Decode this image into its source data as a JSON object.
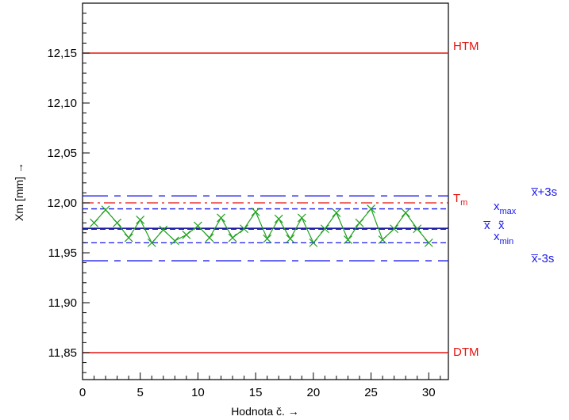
{
  "chart_data": {
    "type": "line",
    "title": "",
    "xlabel": "Hodnota č. →",
    "ylabel": "Xm [mm] →",
    "xlim": [
      0,
      31.7
    ],
    "ylim": [
      11.823,
      12.2
    ],
    "x_ticks": [
      0,
      5,
      10,
      15,
      20,
      25,
      30
    ],
    "x_tick_labels": [
      "0",
      "5",
      "10",
      "15",
      "20",
      "25",
      "30"
    ],
    "y_ticks": [
      11.85,
      11.9,
      11.95,
      12.0,
      12.05,
      12.1,
      12.15
    ],
    "y_tick_labels": [
      "11,85",
      "11,90",
      "11,95",
      "12,00",
      "12,05",
      "12,10",
      "12,15"
    ],
    "grid": false,
    "series": [
      {
        "color": "#1ea01e",
        "marker": "x",
        "x": [
          1,
          2,
          3,
          4,
          5,
          6,
          7,
          8,
          9,
          10,
          11,
          12,
          13,
          14,
          15,
          16,
          17,
          18,
          19,
          20,
          21,
          22,
          23,
          24,
          25,
          26,
          27,
          28,
          29,
          30
        ],
        "values": [
          11.98,
          11.993,
          11.98,
          11.965,
          11.983,
          11.96,
          11.973,
          11.962,
          11.968,
          11.977,
          11.965,
          11.985,
          11.965,
          11.974,
          11.991,
          11.964,
          11.984,
          11.964,
          11.985,
          11.96,
          11.974,
          11.99,
          11.963,
          11.98,
          11.994,
          11.963,
          11.974,
          11.99,
          11.974,
          11.96
        ]
      }
    ],
    "reference_lines": [
      {
        "value": 12.15,
        "label": "HTM",
        "color": "#e8130f",
        "style": "solid"
      },
      {
        "value": 11.85,
        "label": "DTM",
        "color": "#e8130f",
        "style": "solid"
      },
      {
        "value": 12.0,
        "label": "T",
        "label_sub": "m",
        "color": "#e8130f",
        "style": "dashdot"
      },
      {
        "value": 12.007,
        "label": "x̅+3s",
        "color": "#1a1aee",
        "style": "longdashdot"
      },
      {
        "value": 11.942,
        "label": "x̅-3s",
        "color": "#1a1aee",
        "style": "longdashdot"
      },
      {
        "value": 11.994,
        "label": "x",
        "label_sub": "max",
        "color": "#1a1aee",
        "style": "dashed"
      },
      {
        "value": 11.96,
        "label": "x",
        "label_sub": "min",
        "color": "#1a1aee",
        "style": "dashed"
      },
      {
        "value": 11.9745,
        "label": "x̅",
        "color": "#00008b",
        "style": "solid"
      },
      {
        "value": 11.9735,
        "label": "x̃",
        "color": "#1a1aee",
        "style": "dashed"
      }
    ]
  }
}
